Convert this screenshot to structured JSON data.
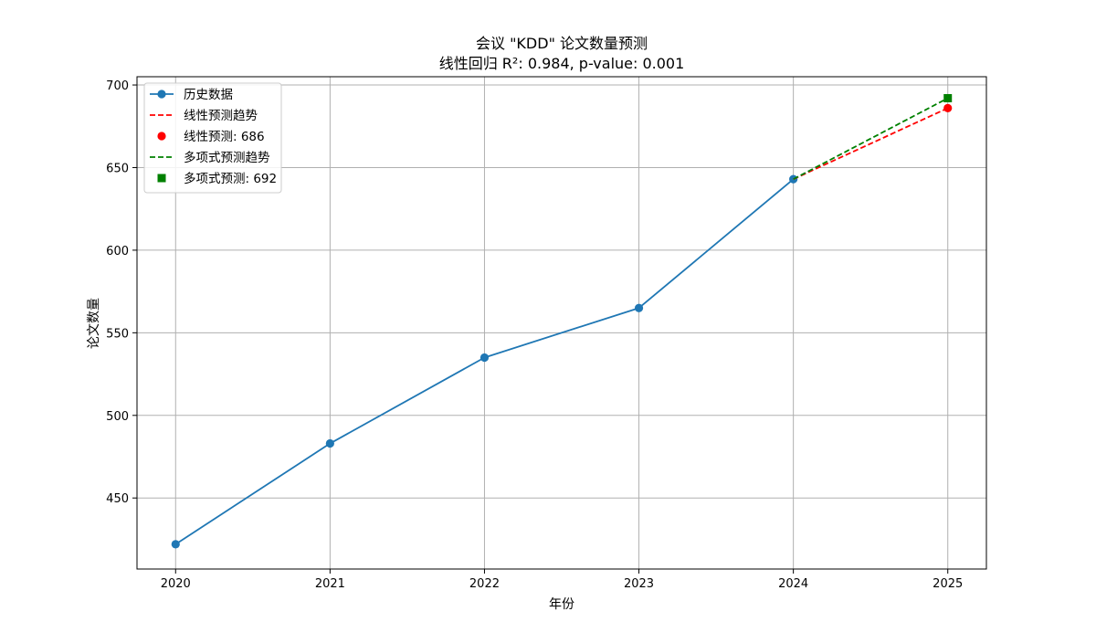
{
  "chart_data": {
    "type": "line",
    "title": "会议 \"KDD\" 论文数量预测",
    "subtitle": "线性回归 R²: 0.984, p-value: 0.001",
    "xlabel": "年份",
    "ylabel": "论文数量",
    "xlim": [
      2019.75,
      2025.25
    ],
    "ylim": [
      407,
      705
    ],
    "x_ticks": [
      2020,
      2021,
      2022,
      2023,
      2024,
      2025
    ],
    "y_ticks": [
      450,
      500,
      550,
      600,
      650,
      700
    ],
    "grid": true,
    "legend_position": "top-left",
    "series": [
      {
        "name": "历史数据",
        "kind": "line-marker",
        "color": "#1f77b4",
        "marker": "circle",
        "points": [
          [
            2020,
            422
          ],
          [
            2021,
            483
          ],
          [
            2022,
            535
          ],
          [
            2023,
            565
          ],
          [
            2024,
            643
          ]
        ]
      },
      {
        "name": "线性预测趋势",
        "kind": "dashed-line",
        "color": "#ff0000",
        "points": [
          [
            2024,
            643
          ],
          [
            2025,
            686
          ]
        ]
      },
      {
        "name": "线性预测: 686",
        "kind": "marker",
        "color": "#ff0000",
        "marker": "circle",
        "points": [
          [
            2025,
            686
          ]
        ]
      },
      {
        "name": "多项式预测趋势",
        "kind": "dashed-line",
        "color": "#008000",
        "points": [
          [
            2024,
            643
          ],
          [
            2025,
            692
          ]
        ]
      },
      {
        "name": "多项式预测: 692",
        "kind": "marker",
        "color": "#008000",
        "marker": "square",
        "points": [
          [
            2025,
            692
          ]
        ]
      }
    ]
  }
}
